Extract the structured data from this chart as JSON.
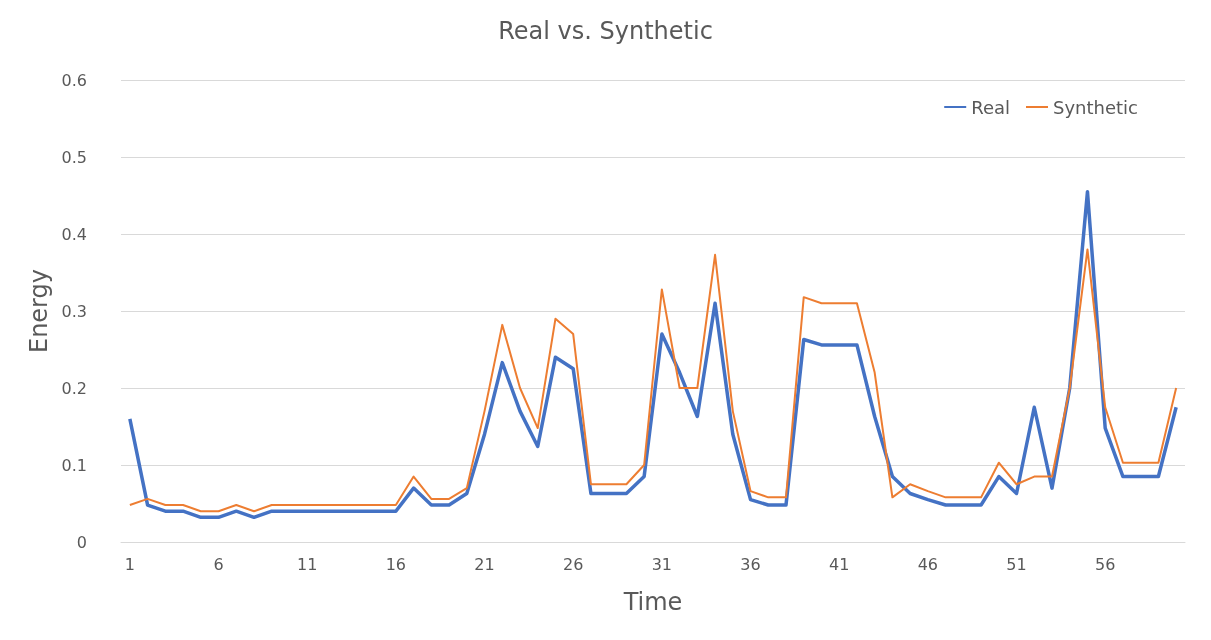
{
  "chart_data": {
    "type": "line",
    "title": "Real vs. Synthetic",
    "xlabel": "Time",
    "ylabel": "Energy",
    "x": [
      1,
      2,
      3,
      4,
      5,
      6,
      7,
      8,
      9,
      10,
      11,
      12,
      13,
      14,
      15,
      16,
      17,
      18,
      19,
      20,
      21,
      22,
      23,
      24,
      25,
      26,
      27,
      28,
      29,
      30,
      31,
      32,
      33,
      34,
      35,
      36,
      37,
      38,
      39,
      40,
      41,
      42,
      43,
      44,
      45,
      46,
      47,
      48,
      49,
      50,
      51,
      52,
      53,
      54,
      55,
      56,
      57,
      58,
      59,
      60
    ],
    "xlim": [
      0.5,
      60.5
    ],
    "xticks": [
      1,
      6,
      11,
      16,
      21,
      26,
      31,
      36,
      41,
      46,
      51,
      56
    ],
    "series": [
      {
        "name": "Real",
        "color": "#4472c4",
        "values": [
          0.16,
          0.048,
          0.04,
          0.04,
          0.032,
          0.032,
          0.04,
          0.032,
          0.04,
          0.04,
          0.04,
          0.04,
          0.04,
          0.04,
          0.04,
          0.04,
          0.07,
          0.048,
          0.048,
          0.063,
          0.14,
          0.233,
          0.17,
          0.124,
          0.24,
          0.225,
          0.063,
          0.063,
          0.063,
          0.085,
          0.27,
          0.22,
          0.163,
          0.31,
          0.14,
          0.055,
          0.048,
          0.048,
          0.263,
          0.256,
          0.256,
          0.256,
          0.163,
          0.085,
          0.063,
          0.055,
          0.048,
          0.048,
          0.048,
          0.085,
          0.063,
          0.175,
          0.07,
          0.2,
          0.455,
          0.148,
          0.085,
          0.085,
          0.085,
          0.175
        ]
      },
      {
        "name": "Synthetic",
        "color": "#ed7d31",
        "values": [
          0.048,
          0.056,
          0.048,
          0.048,
          0.04,
          0.04,
          0.048,
          0.04,
          0.048,
          0.048,
          0.048,
          0.048,
          0.048,
          0.048,
          0.048,
          0.048,
          0.085,
          0.056,
          0.056,
          0.07,
          0.17,
          0.282,
          0.2,
          0.148,
          0.29,
          0.27,
          0.075,
          0.075,
          0.075,
          0.1,
          0.328,
          0.2,
          0.2,
          0.373,
          0.17,
          0.066,
          0.058,
          0.058,
          0.318,
          0.31,
          0.31,
          0.31,
          0.22,
          0.058,
          0.075,
          0.066,
          0.058,
          0.058,
          0.058,
          0.103,
          0.075,
          0.085,
          0.085,
          0.2,
          0.38,
          0.175,
          0.103,
          0.103,
          0.103,
          0.2
        ]
      }
    ],
    "ylim": [
      0,
      0.6
    ],
    "yticks": [
      0,
      0.1,
      0.2,
      0.3,
      0.4,
      0.5,
      0.6
    ],
    "grid": "y",
    "legend": "top right",
    "marker": "none",
    "line_style": "solid"
  }
}
